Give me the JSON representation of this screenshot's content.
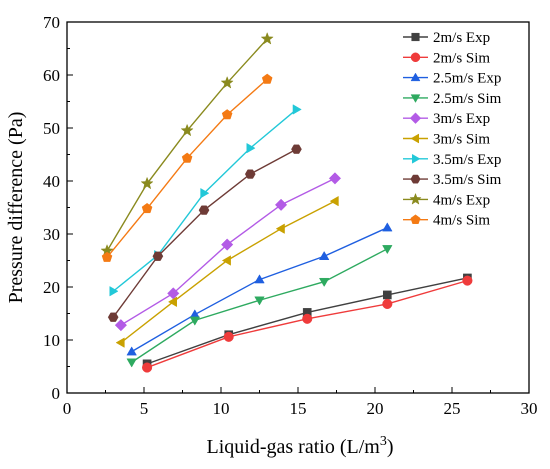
{
  "chart_data": {
    "type": "line",
    "title": "",
    "xlabel": "Liquid-gas ratio (L/m",
    "xlabel_sup": "3",
    "xlabel_close": ")",
    "ylabel": "Pressure difference (Pa)",
    "xlim": [
      0,
      30
    ],
    "ylim": [
      0,
      70
    ],
    "xticks": [
      0,
      5,
      10,
      15,
      20,
      25,
      30
    ],
    "yticks": [
      0,
      10,
      20,
      30,
      40,
      50,
      60,
      70
    ],
    "grid": false,
    "legend_position": "top-right",
    "series": [
      {
        "name": "2m/s Exp",
        "color": "#404040",
        "marker": "square",
        "x": [
          5.2,
          10.5,
          15.6,
          20.8,
          26.0
        ],
        "y": [
          5.5,
          11.0,
          15.2,
          18.5,
          21.7
        ]
      },
      {
        "name": "2m/s Sim",
        "color": "#ef3b3b",
        "marker": "circle",
        "x": [
          5.2,
          10.5,
          15.6,
          20.8,
          26.0
        ],
        "y": [
          4.8,
          10.6,
          14.0,
          16.8,
          21.2
        ]
      },
      {
        "name": "2.5m/s Exp",
        "color": "#1f5fe0",
        "marker": "triangle-up",
        "x": [
          4.2,
          8.3,
          12.5,
          16.7,
          20.8
        ],
        "y": [
          7.8,
          14.8,
          21.4,
          25.8,
          31.2
        ]
      },
      {
        "name": "2.5m/s Sim",
        "color": "#2eaa60",
        "marker": "triangle-down",
        "x": [
          4.2,
          8.3,
          12.5,
          16.7,
          20.8
        ],
        "y": [
          5.8,
          13.7,
          17.5,
          21.0,
          27.2
        ]
      },
      {
        "name": "3m/s Exp",
        "color": "#b35be6",
        "marker": "diamond",
        "x": [
          3.5,
          6.9,
          10.4,
          13.9,
          17.4
        ],
        "y": [
          12.8,
          18.8,
          28.0,
          35.5,
          40.5
        ]
      },
      {
        "name": "3m/s Sim",
        "color": "#c9a100",
        "marker": "triangle-left",
        "x": [
          3.5,
          6.9,
          10.4,
          13.9,
          17.4
        ],
        "y": [
          9.5,
          17.2,
          25.0,
          31.0,
          36.2
        ]
      },
      {
        "name": "3.5m/s Exp",
        "color": "#22c8d8",
        "marker": "triangle-right",
        "x": [
          3.0,
          5.9,
          8.9,
          11.9,
          14.9
        ],
        "y": [
          19.2,
          26.0,
          37.7,
          46.2,
          53.5
        ]
      },
      {
        "name": "3.5m/s Sim",
        "color": "#6e3b36",
        "marker": "hexagon",
        "x": [
          3.0,
          5.9,
          8.9,
          11.9,
          14.9
        ],
        "y": [
          14.3,
          25.8,
          34.5,
          41.3,
          46.0
        ]
      },
      {
        "name": "4m/s Exp",
        "color": "#8a8a1e",
        "marker": "star",
        "x": [
          2.6,
          5.2,
          7.8,
          10.4,
          13.0
        ],
        "y": [
          26.8,
          39.5,
          49.5,
          58.5,
          66.8
        ]
      },
      {
        "name": "4m/s Sim",
        "color": "#f47a14",
        "marker": "pentagon",
        "x": [
          2.6,
          5.2,
          7.8,
          10.4,
          13.0
        ],
        "y": [
          25.6,
          34.8,
          44.3,
          52.5,
          59.2
        ]
      }
    ]
  }
}
